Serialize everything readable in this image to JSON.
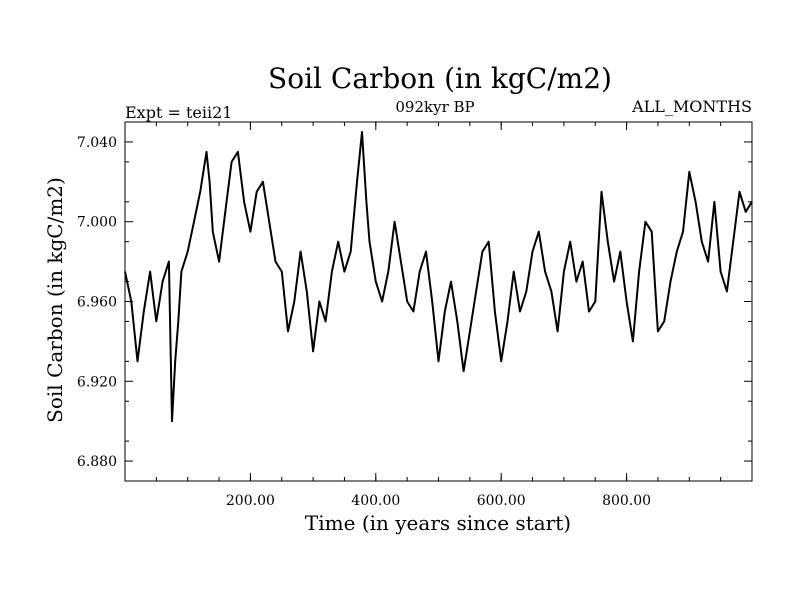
{
  "chart_data": {
    "type": "line",
    "title": "Soil Carbon (in kgC/m2)",
    "subtitle_left": "Expt = teii21",
    "subtitle_center": "092kyr BP",
    "subtitle_right": "ALL_MONTHS",
    "xlabel": "Time (in years since start)",
    "ylabel": "Soil Carbon (in kgC/m2)",
    "xlim": [
      0,
      1000
    ],
    "ylim": [
      6.87,
      7.05
    ],
    "xticks": [
      200,
      400,
      600,
      800
    ],
    "xtick_labels": [
      "200.00",
      "400.00",
      "600.00",
      "800.00"
    ],
    "yticks": [
      6.88,
      6.92,
      6.96,
      7.0,
      7.04
    ],
    "ytick_labels": [
      "6.880",
      "6.920",
      "6.960",
      "7.000",
      "7.040"
    ],
    "grid": false,
    "series": [
      {
        "color": "#000000",
        "x": [
          0,
          10,
          20,
          30,
          40,
          50,
          60,
          70,
          75,
          80,
          85,
          90,
          100,
          110,
          120,
          130,
          135,
          140,
          150,
          160,
          170,
          180,
          190,
          200,
          210,
          220,
          230,
          240,
          250,
          260,
          270,
          280,
          290,
          300,
          310,
          320,
          330,
          340,
          350,
          360,
          370,
          378,
          385,
          390,
          400,
          410,
          420,
          430,
          440,
          450,
          460,
          470,
          480,
          490,
          500,
          510,
          520,
          530,
          540,
          550,
          560,
          570,
          580,
          590,
          600,
          610,
          620,
          630,
          640,
          650,
          660,
          670,
          680,
          690,
          700,
          710,
          720,
          730,
          740,
          750,
          760,
          770,
          780,
          790,
          800,
          810,
          820,
          830,
          840,
          850,
          860,
          870,
          880,
          890,
          900,
          910,
          920,
          930,
          940,
          950,
          960,
          970,
          980,
          990,
          1000
        ],
        "y": [
          6.975,
          6.96,
          6.93,
          6.955,
          6.975,
          6.95,
          6.97,
          6.98,
          6.9,
          6.93,
          6.95,
          6.975,
          6.985,
          7.0,
          7.015,
          7.035,
          7.02,
          6.995,
          6.98,
          7.005,
          7.03,
          7.035,
          7.01,
          6.995,
          7.015,
          7.02,
          7.0,
          6.98,
          6.975,
          6.945,
          6.96,
          6.985,
          6.965,
          6.935,
          6.96,
          6.95,
          6.975,
          6.99,
          6.975,
          6.985,
          7.02,
          7.045,
          7.01,
          6.99,
          6.97,
          6.96,
          6.975,
          7.0,
          6.98,
          6.96,
          6.955,
          6.975,
          6.985,
          6.96,
          6.93,
          6.955,
          6.97,
          6.95,
          6.925,
          6.945,
          6.965,
          6.985,
          6.99,
          6.955,
          6.93,
          6.95,
          6.975,
          6.955,
          6.965,
          6.985,
          6.995,
          6.975,
          6.965,
          6.945,
          6.975,
          6.99,
          6.97,
          6.98,
          6.955,
          6.96,
          7.015,
          6.99,
          6.97,
          6.985,
          6.96,
          6.94,
          6.975,
          7.0,
          6.995,
          6.945,
          6.95,
          6.97,
          6.985,
          6.995,
          7.025,
          7.01,
          6.99,
          6.98,
          7.01,
          6.975,
          6.965,
          6.99,
          7.015,
          7.005,
          7.01
        ]
      }
    ]
  }
}
